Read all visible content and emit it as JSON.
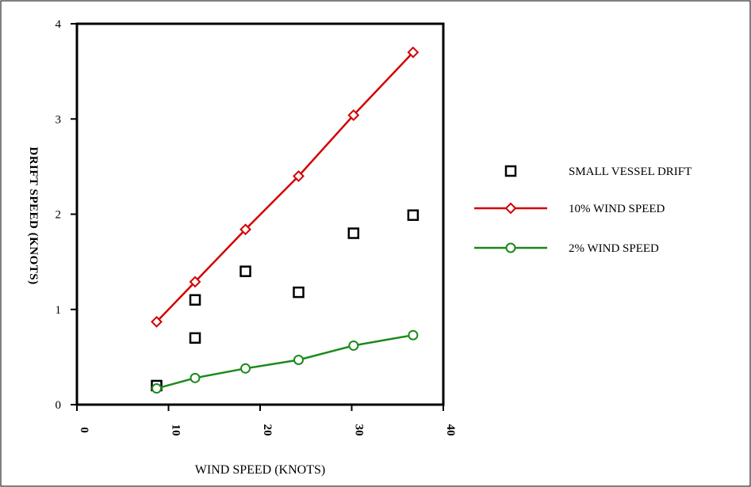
{
  "chart_data": {
    "type": "scatter",
    "xlabel": "WIND SPEED (KNOTS)",
    "ylabel": "DRIFT SPEED (KNOTS)",
    "xlim": [
      0,
      40
    ],
    "ylim": [
      0,
      4
    ],
    "x_ticks": [
      0,
      10,
      20,
      30,
      40
    ],
    "y_ticks": [
      0,
      1,
      2,
      3,
      4
    ],
    "x_tick_labels": [
      "0",
      "10",
      "20",
      "30",
      "40"
    ],
    "y_tick_labels": [
      "0",
      "1",
      "2",
      "3",
      "4"
    ],
    "grid": false,
    "legend_position": "right",
    "series": [
      {
        "name": "SMALL VESSEL DRIFT",
        "kind": "scatter",
        "marker": "square",
        "color": "#000000",
        "x": [
          8.7,
          12.9,
          12.9,
          18.4,
          24.2,
          30.2,
          36.7
        ],
        "y": [
          0.2,
          0.7,
          1.1,
          1.4,
          1.18,
          1.8,
          1.99
        ]
      },
      {
        "name": "10% WIND SPEED",
        "kind": "line",
        "marker": "diamond",
        "color": "#d40000",
        "x": [
          8.7,
          12.9,
          18.4,
          24.2,
          30.2,
          36.7
        ],
        "y": [
          0.87,
          1.29,
          1.84,
          2.4,
          3.04,
          3.7
        ]
      },
      {
        "name": "2% WIND SPEED",
        "kind": "line",
        "marker": "circle",
        "color": "#1a8a1a",
        "x": [
          8.7,
          12.9,
          18.4,
          24.2,
          30.2,
          36.7
        ],
        "y": [
          0.17,
          0.28,
          0.38,
          0.47,
          0.62,
          0.73
        ]
      }
    ]
  }
}
